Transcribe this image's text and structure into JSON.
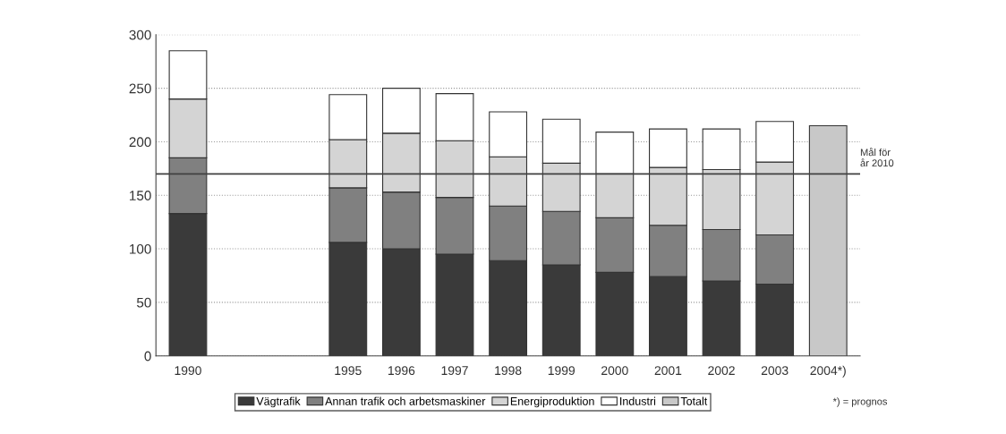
{
  "chart_data": {
    "type": "bar",
    "stacked": true,
    "categories": [
      "1990",
      null,
      null,
      "1995",
      "1996",
      "1997",
      "1998",
      "1999",
      "2000",
      "2001",
      "2002",
      "2003",
      "2004*)"
    ],
    "series": [
      {
        "name": "Vägtrafik",
        "color": "#3a3a3a",
        "values": [
          133,
          null,
          null,
          106,
          100,
          95,
          89,
          85,
          78,
          74,
          70,
          67,
          null
        ]
      },
      {
        "name": "Annan trafik och arbetsmaskiner",
        "color": "#808080",
        "values": [
          52,
          null,
          null,
          51,
          53,
          53,
          51,
          50,
          51,
          48,
          48,
          46,
          null
        ]
      },
      {
        "name": "Energiproduktion",
        "color": "#d4d4d4",
        "values": [
          55,
          null,
          null,
          45,
          55,
          53,
          46,
          45,
          41,
          54,
          56,
          68,
          null
        ]
      },
      {
        "name": "Industri",
        "color": "#ffffff",
        "values": [
          45,
          null,
          null,
          42,
          42,
          44,
          42,
          41,
          39,
          36,
          38,
          38,
          null
        ]
      },
      {
        "name": "Totalt",
        "color": "#c8c8c8",
        "values": [
          null,
          null,
          null,
          null,
          null,
          null,
          null,
          null,
          null,
          null,
          null,
          null,
          215
        ]
      }
    ],
    "ylim": [
      0,
      300
    ],
    "yticks": [
      0,
      50,
      100,
      150,
      200,
      250,
      300
    ],
    "grid": "y",
    "legend": "bottom",
    "ref_lines": [
      {
        "axis": "y",
        "value": 170,
        "label": "Mål för\når 2010",
        "color": "#404040"
      }
    ],
    "annotations": [
      "*) = prognos"
    ]
  }
}
